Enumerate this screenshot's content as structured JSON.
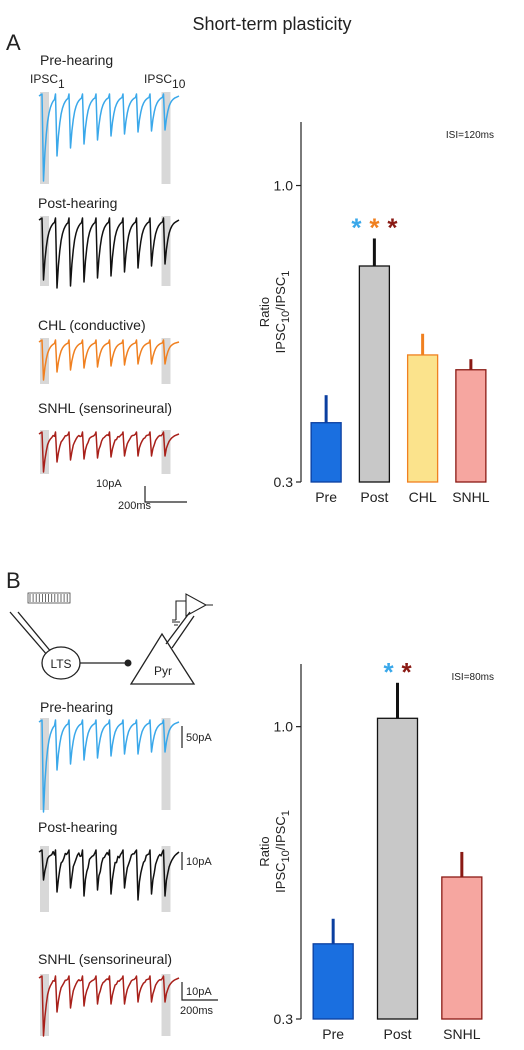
{
  "title": "Short-term plasticity",
  "colors": {
    "pre": "#1a6fe0",
    "pre_edge": "#0b3fa0",
    "pre_trace": "#3aa8ea",
    "post": "#c8c8c8",
    "post_edge": "#111111",
    "post_trace": "#111111",
    "chl": "#fbe38c",
    "chl_edge": "#f08020",
    "chl_trace": "#f08020",
    "snhl": "#f6a6a0",
    "snhl_edge": "#8a1a14",
    "snhl_trace": "#a8201a",
    "star_pre": "#3aa8ea",
    "star_chl": "#f08020",
    "star_snhl": "#8a1a14",
    "shade": "#d8d8d8"
  },
  "panel_a": {
    "letter": "A",
    "trace_labels": [
      "Pre-hearing",
      "Post-hearing",
      "CHL (conductive)",
      "SNHL (sensorineural)"
    ],
    "ipsc1": {
      "base": "IPSC",
      "sub": "1"
    },
    "ipsc10": {
      "base": "IPSC",
      "sub": "10"
    },
    "scale_y": "10pA",
    "scale_x": "200ms"
  },
  "panel_b": {
    "letter": "B",
    "cell_lts": "LTS",
    "cell_pyr": "Pyr",
    "trace_labels": [
      "Pre-hearing",
      "Post-hearing",
      "SNHL (sensorineural)"
    ],
    "scale_pre": "50pA",
    "scale_post": "10pA",
    "scale_snhl_y": "10pA",
    "scale_x": "200ms"
  },
  "chart_data": [
    {
      "type": "bar",
      "isi_label": "ISI=120ms",
      "categories": [
        "Pre",
        "Post",
        "CHL",
        "SNHL"
      ],
      "values": [
        0.44,
        0.81,
        0.6,
        0.565
      ],
      "errors": [
        0.065,
        0.065,
        0.05,
        0.025
      ],
      "ylim": [
        0.3,
        1.15
      ],
      "yticks": [
        "1.0",
        "0.3"
      ],
      "ylabel": {
        "prefix": "Ratio",
        "num": "IPSC",
        "num_sub": "10",
        "den": "IPSC",
        "den_sub": "1"
      },
      "significance": [
        "*",
        "*",
        "*"
      ]
    },
    {
      "type": "bar",
      "isi_label": "ISI=80ms",
      "categories": [
        "Pre",
        "Post",
        "SNHL"
      ],
      "values": [
        0.48,
        1.02,
        0.64
      ],
      "errors": [
        0.06,
        0.085,
        0.06
      ],
      "ylim": [
        0.3,
        1.15
      ],
      "yticks": [
        "1.0",
        "0.3"
      ],
      "ylabel": {
        "prefix": "Ratio",
        "num": "IPSC",
        "num_sub": "10",
        "den": "IPSC",
        "den_sub": "1"
      },
      "significance": [
        "*",
        "*"
      ]
    }
  ]
}
